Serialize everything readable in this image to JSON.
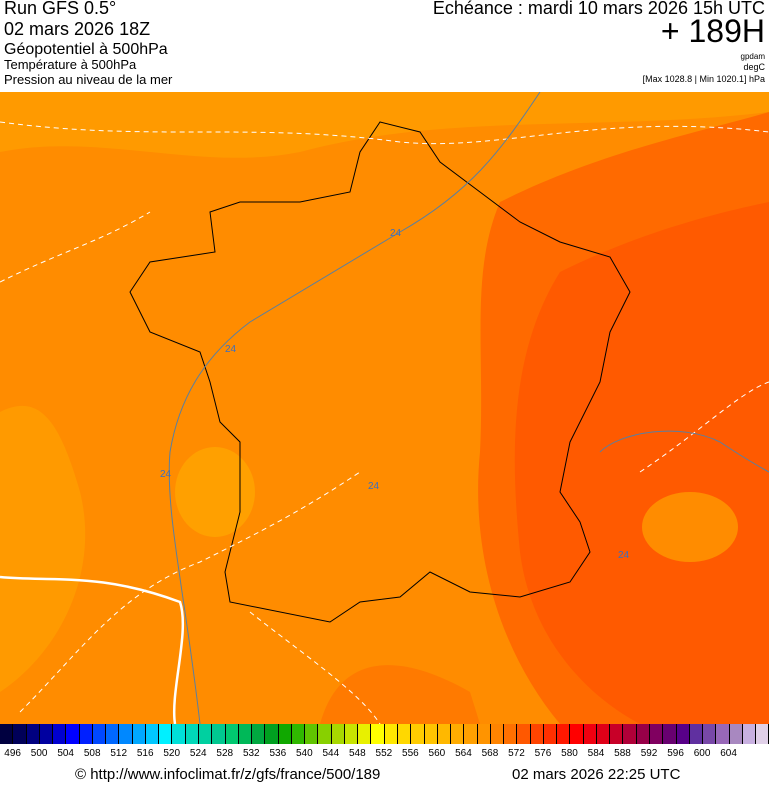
{
  "header": {
    "run": "Run GFS 0.5°",
    "run_date": "02 mars 2026 18Z",
    "layer1": "Géopotentiel à 500hPa",
    "layer2": "Température à 500hPa",
    "layer3": "Pression au niveau de la mer",
    "echeance": "Echéance : mardi 10 mars 2026 15h UTC",
    "offset": "+ 189H",
    "unit1": "gpdam",
    "unit2": "degC",
    "pressure_range": "[Max 1028.8 | Min 1020.1] hPa"
  },
  "map": {
    "isotherm_labels": [
      "24",
      "24",
      "24",
      "24",
      "24"
    ],
    "colors": {
      "base": "#ff8c00",
      "light": "#ffa000",
      "dark": "#ff6000",
      "darker": "#ff5000"
    }
  },
  "legend": {
    "ticks": [
      "496",
      "500",
      "504",
      "508",
      "512",
      "516",
      "520",
      "524",
      "528",
      "532",
      "536",
      "540",
      "544",
      "548",
      "552",
      "556",
      "560",
      "564",
      "568",
      "572",
      "576",
      "580",
      "584",
      "588",
      "592",
      "596",
      "600",
      "604"
    ],
    "colors": [
      "#000040",
      "#000058",
      "#000080",
      "#0000a0",
      "#0000d0",
      "#0000ff",
      "#0020ff",
      "#0048ff",
      "#0068ff",
      "#0088ff",
      "#00a8ff",
      "#00c8ff",
      "#00f0ff",
      "#00e0d8",
      "#00d8b8",
      "#00d0a0",
      "#00c890",
      "#00c870",
      "#00b858",
      "#00a840",
      "#00a020",
      "#10a800",
      "#30b800",
      "#60c400",
      "#88d000",
      "#a8d800",
      "#c8e400",
      "#e8f000",
      "#ffff00",
      "#ffe800",
      "#ffd800",
      "#ffcc00",
      "#ffc400",
      "#ffb800",
      "#ffac00",
      "#ffa000",
      "#ff9400",
      "#ff8400",
      "#ff7000",
      "#ff5800",
      "#ff4400",
      "#ff3000",
      "#ff1800",
      "#ff0000",
      "#f00010",
      "#e00018",
      "#c80028",
      "#b00038",
      "#980048",
      "#800060",
      "#680070",
      "#580088",
      "#6030a0",
      "#7848a8",
      "#9868b8",
      "#a888c0",
      "#c8b0e0",
      "#e0d0e8"
    ]
  },
  "footer": {
    "url": "© http://www.infoclimat.fr/z/gfs/france/500/189",
    "generated": "02 mars 2026 22:25 UTC"
  }
}
